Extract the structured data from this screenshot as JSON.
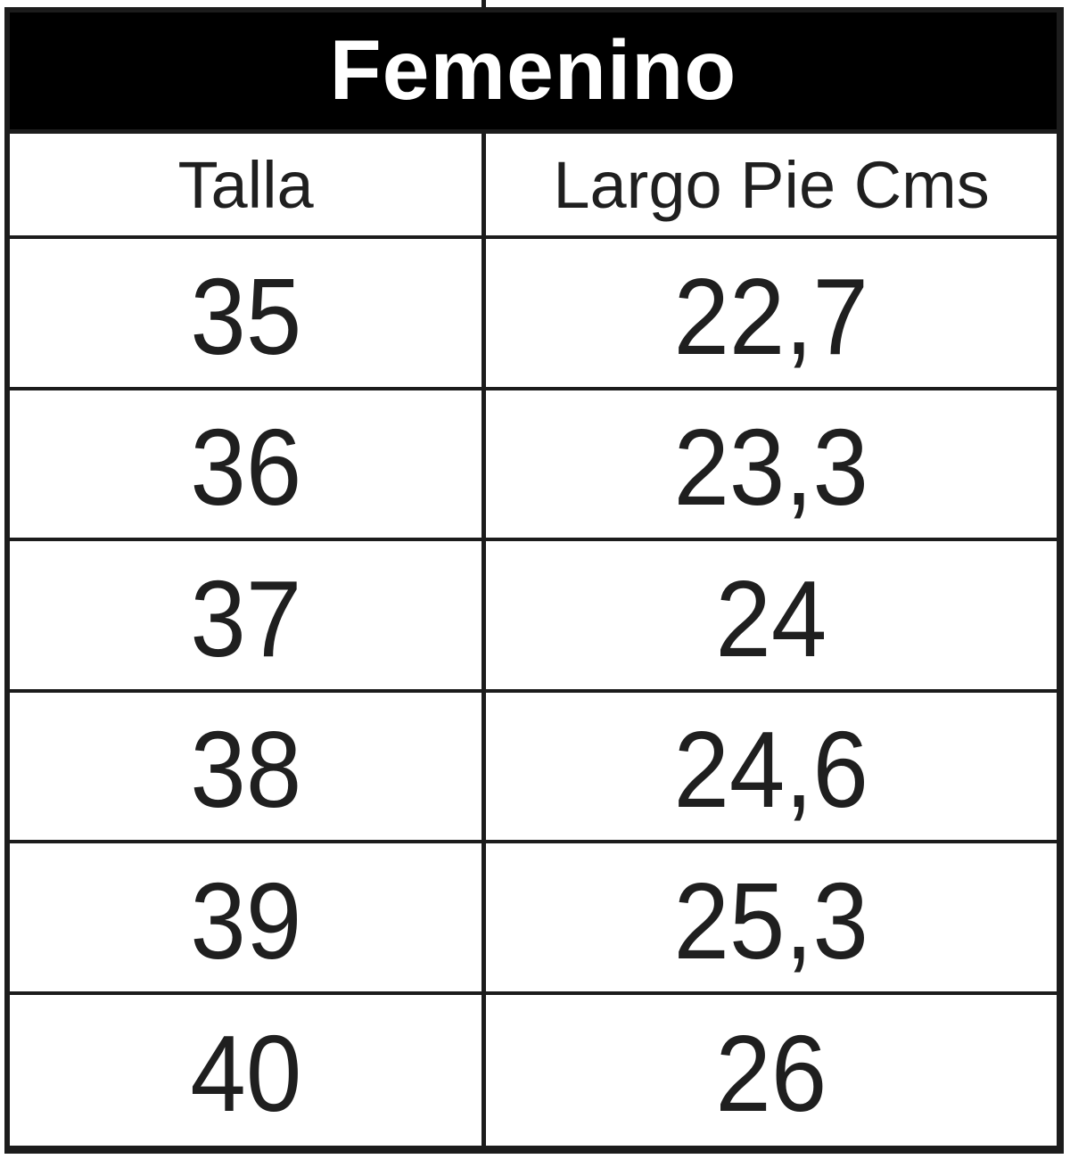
{
  "chart_data": {
    "type": "table",
    "title": "Femenino",
    "columns": [
      "Talla",
      "Largo Pie Cms"
    ],
    "rows": [
      [
        "35",
        "22,7"
      ],
      [
        "36",
        "23,3"
      ],
      [
        "37",
        "24"
      ],
      [
        "38",
        "24,6"
      ],
      [
        "39",
        "25,3"
      ],
      [
        "40",
        "26"
      ]
    ]
  },
  "colors": {
    "title_bg": "#000000",
    "title_text": "#ffffff",
    "border": "#1c1c1c",
    "cell_bg": "#ffffff",
    "text": "#1f1f1f"
  }
}
